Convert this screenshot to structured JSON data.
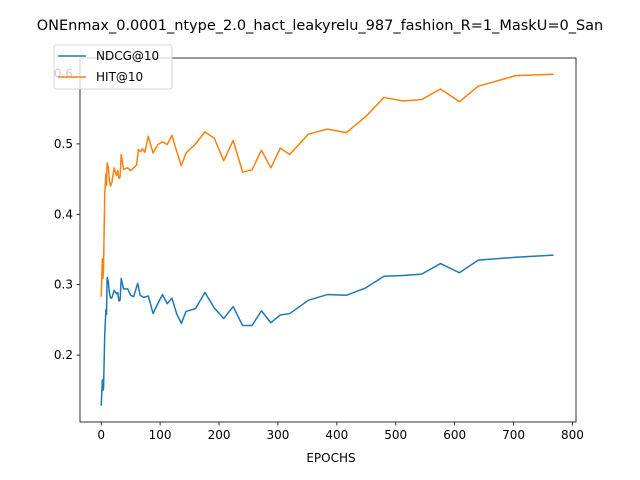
{
  "chart_data": {
    "type": "line",
    "title": "ONEnmax_0.0001_ntype_2.0_hact_leakyrelu_987_fashion_R=1_MaskU=0_San",
    "xlabel": "EPOCHS",
    "ylabel": "",
    "xlim": [
      -36,
      806
    ],
    "ylim": [
      0.105,
      0.622
    ],
    "xticks": [
      0,
      100,
      200,
      300,
      400,
      500,
      600,
      700,
      800
    ],
    "yticks": [
      0.2,
      0.3,
      0.4,
      0.5,
      0.6
    ],
    "ytick_labels": [
      "0.2",
      "0.3",
      "0.4",
      "0.5",
      "0.6"
    ],
    "grid": false,
    "legend_position": "top-left",
    "series": [
      {
        "name": "NDCG@10",
        "color": "#1f77b4",
        "points": [
          [
            0,
            0.128
          ],
          [
            2,
            0.165
          ],
          [
            3,
            0.15
          ],
          [
            4,
            0.153
          ],
          [
            6,
            0.23
          ],
          [
            8,
            0.265
          ],
          [
            9,
            0.258
          ],
          [
            10,
            0.31
          ],
          [
            12,
            0.305
          ],
          [
            14,
            0.288
          ],
          [
            16,
            0.281
          ],
          [
            18,
            0.281
          ],
          [
            22,
            0.292
          ],
          [
            26,
            0.287
          ],
          [
            28,
            0.289
          ],
          [
            30,
            0.277
          ],
          [
            32,
            0.278
          ],
          [
            34,
            0.309
          ],
          [
            38,
            0.294
          ],
          [
            45,
            0.294
          ],
          [
            50,
            0.285
          ],
          [
            55,
            0.283
          ],
          [
            62,
            0.302
          ],
          [
            66,
            0.285
          ],
          [
            72,
            0.282
          ],
          [
            80,
            0.284
          ],
          [
            88,
            0.259
          ],
          [
            96,
            0.273
          ],
          [
            104,
            0.286
          ],
          [
            112,
            0.273
          ],
          [
            120,
            0.281
          ],
          [
            128,
            0.259
          ],
          [
            136,
            0.245
          ],
          [
            144,
            0.262
          ],
          [
            160,
            0.266
          ],
          [
            176,
            0.289
          ],
          [
            192,
            0.267
          ],
          [
            208,
            0.252
          ],
          [
            224,
            0.269
          ],
          [
            240,
            0.242
          ],
          [
            256,
            0.242
          ],
          [
            272,
            0.263
          ],
          [
            288,
            0.246
          ],
          [
            304,
            0.257
          ],
          [
            320,
            0.259
          ],
          [
            352,
            0.278
          ],
          [
            384,
            0.286
          ],
          [
            416,
            0.285
          ],
          [
            448,
            0.295
          ],
          [
            480,
            0.312
          ],
          [
            512,
            0.313
          ],
          [
            544,
            0.315
          ],
          [
            576,
            0.33
          ],
          [
            608,
            0.317
          ],
          [
            640,
            0.335
          ],
          [
            704,
            0.339
          ],
          [
            768,
            0.342
          ]
        ]
      },
      {
        "name": "HIT@10",
        "color": "#ff7f0e",
        "points": [
          [
            0,
            0.283
          ],
          [
            2,
            0.337
          ],
          [
            3,
            0.309
          ],
          [
            4,
            0.327
          ],
          [
            6,
            0.428
          ],
          [
            8,
            0.458
          ],
          [
            9,
            0.441
          ],
          [
            10,
            0.473
          ],
          [
            12,
            0.467
          ],
          [
            14,
            0.447
          ],
          [
            16,
            0.44
          ],
          [
            18,
            0.445
          ],
          [
            22,
            0.466
          ],
          [
            26,
            0.455
          ],
          [
            28,
            0.462
          ],
          [
            30,
            0.451
          ],
          [
            32,
            0.453
          ],
          [
            34,
            0.485
          ],
          [
            38,
            0.464
          ],
          [
            45,
            0.466
          ],
          [
            50,
            0.462
          ],
          [
            55,
            0.466
          ],
          [
            60,
            0.47
          ],
          [
            63,
            0.492
          ],
          [
            67,
            0.489
          ],
          [
            70,
            0.493
          ],
          [
            74,
            0.488
          ],
          [
            80,
            0.511
          ],
          [
            88,
            0.487
          ],
          [
            96,
            0.499
          ],
          [
            104,
            0.503
          ],
          [
            112,
            0.499
          ],
          [
            120,
            0.512
          ],
          [
            128,
            0.49
          ],
          [
            136,
            0.469
          ],
          [
            144,
            0.487
          ],
          [
            160,
            0.5
          ],
          [
            176,
            0.517
          ],
          [
            192,
            0.508
          ],
          [
            208,
            0.476
          ],
          [
            224,
            0.505
          ],
          [
            240,
            0.46
          ],
          [
            256,
            0.463
          ],
          [
            272,
            0.491
          ],
          [
            288,
            0.466
          ],
          [
            304,
            0.494
          ],
          [
            320,
            0.485
          ],
          [
            352,
            0.514
          ],
          [
            384,
            0.521
          ],
          [
            416,
            0.516
          ],
          [
            448,
            0.538
          ],
          [
            480,
            0.566
          ],
          [
            512,
            0.561
          ],
          [
            544,
            0.563
          ],
          [
            576,
            0.578
          ],
          [
            608,
            0.56
          ],
          [
            640,
            0.582
          ],
          [
            704,
            0.597
          ],
          [
            768,
            0.599
          ]
        ]
      }
    ]
  }
}
